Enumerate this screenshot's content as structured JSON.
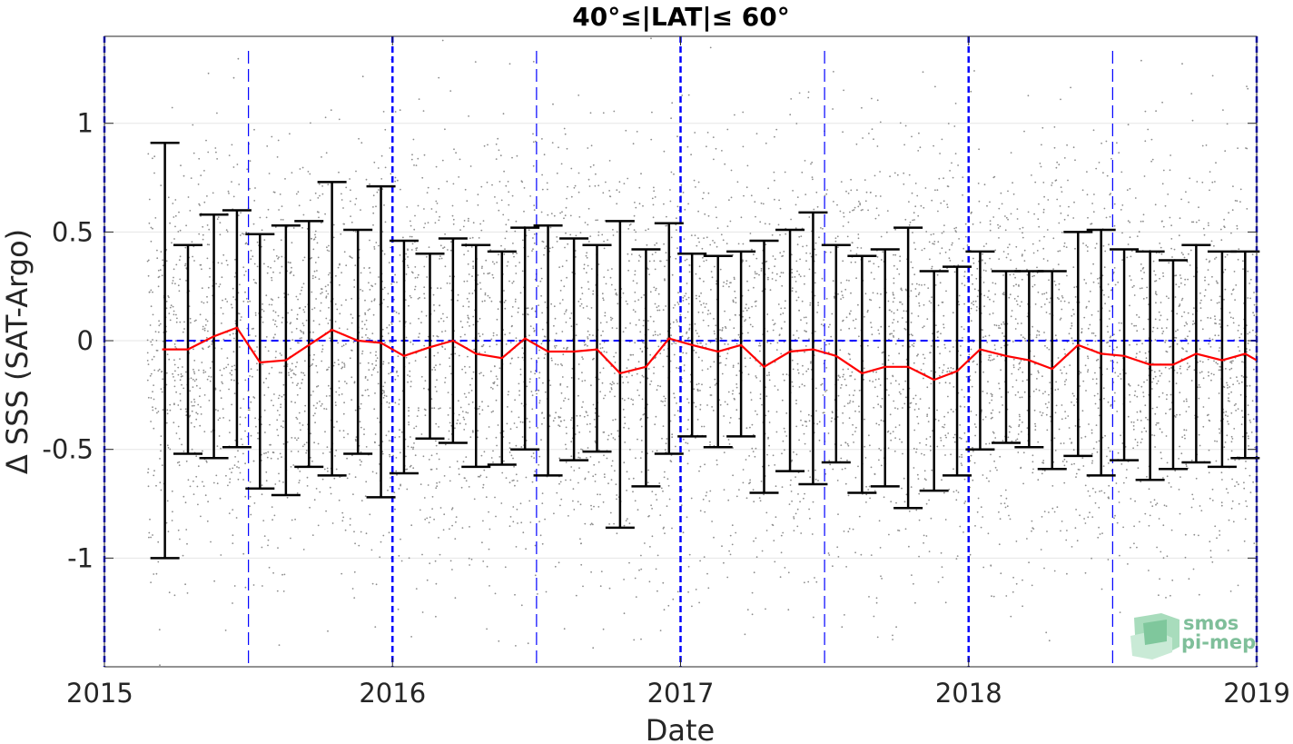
{
  "chart_data": {
    "type": "line",
    "title": "40°≤|LAT|≤ 60°",
    "xlabel": "Date",
    "ylabel": "Δ SSS (SAT-Argo)",
    "xlim": [
      2015.0,
      2019.0
    ],
    "ylim": [
      -1.5,
      1.4
    ],
    "xticks": [
      2015,
      2016,
      2017,
      2018,
      2019
    ],
    "xtick_labels": [
      "2015",
      "2016",
      "2017",
      "2018",
      "2019"
    ],
    "yticks": [
      1,
      0.5,
      0,
      -0.5,
      -1
    ],
    "ytick_labels": [
      "1",
      "0.5",
      "0",
      "-0.5",
      "-1"
    ],
    "grid": true,
    "zero_line": 0,
    "year_lines": [
      2015,
      2016,
      2017,
      2018,
      2019
    ],
    "midyear_lines": [
      2015.5,
      2016.5,
      2017.5,
      2018.5
    ],
    "colors": {
      "mean_line": "#ff0000",
      "errorbar": "#000000",
      "scatter": "#8c8c8c",
      "ref_lines": "#0000ff"
    },
    "series": [
      {
        "x": [
          2015.21,
          2015.29,
          2015.38,
          2015.46,
          2015.54,
          2015.63,
          2015.71,
          2015.79,
          2015.88,
          2015.96,
          2016.04,
          2016.13,
          2016.21,
          2016.29,
          2016.38,
          2016.46,
          2016.54,
          2016.63,
          2016.71,
          2016.79,
          2016.88,
          2016.96,
          2017.04,
          2017.13,
          2017.21,
          2017.29,
          2017.38,
          2017.46,
          2017.54,
          2017.63,
          2017.71,
          2017.79,
          2017.88,
          2017.96,
          2018.04,
          2018.13,
          2018.21,
          2018.29,
          2018.38,
          2018.46,
          2018.54,
          2018.63,
          2018.71,
          2018.79,
          2018.88,
          2018.96
        ],
        "mean": [
          -0.04,
          -0.04,
          0.02,
          0.06,
          -0.1,
          -0.09,
          -0.02,
          0.05,
          0.0,
          -0.01,
          -0.07,
          -0.03,
          0.0,
          -0.06,
          -0.08,
          0.01,
          -0.05,
          -0.05,
          -0.04,
          -0.15,
          -0.12,
          0.01,
          -0.02,
          -0.05,
          -0.02,
          -0.12,
          -0.05,
          -0.04,
          -0.07,
          -0.15,
          -0.12,
          -0.12,
          -0.18,
          -0.14,
          -0.04,
          -0.07,
          -0.09,
          -0.13,
          -0.02,
          -0.06,
          -0.07,
          -0.11,
          -0.11,
          -0.06,
          -0.09,
          -0.06
        ],
        "upper": [
          0.91,
          0.44,
          0.58,
          0.6,
          0.49,
          0.53,
          0.55,
          0.73,
          0.51,
          0.71,
          0.46,
          0.4,
          0.47,
          0.44,
          0.41,
          0.52,
          0.53,
          0.47,
          0.44,
          0.55,
          0.42,
          0.54,
          0.4,
          0.39,
          0.41,
          0.46,
          0.51,
          0.59,
          0.44,
          0.39,
          0.42,
          0.52,
          0.32,
          0.34,
          0.41,
          0.32,
          0.32,
          0.32,
          0.5,
          0.51,
          0.42,
          0.41,
          0.37,
          0.44,
          0.41,
          0.41
        ],
        "lower": [
          -1.0,
          -0.52,
          -0.54,
          -0.49,
          -0.68,
          -0.71,
          -0.58,
          -0.62,
          -0.52,
          -0.72,
          -0.61,
          -0.45,
          -0.47,
          -0.58,
          -0.57,
          -0.5,
          -0.62,
          -0.55,
          -0.51,
          -0.86,
          -0.67,
          -0.52,
          -0.44,
          -0.49,
          -0.44,
          -0.7,
          -0.6,
          -0.66,
          -0.56,
          -0.7,
          -0.67,
          -0.77,
          -0.69,
          -0.62,
          -0.5,
          -0.47,
          -0.49,
          -0.59,
          -0.53,
          -0.62,
          -0.55,
          -0.64,
          -0.59,
          -0.56,
          -0.58,
          -0.54
        ]
      }
    ]
  }
}
